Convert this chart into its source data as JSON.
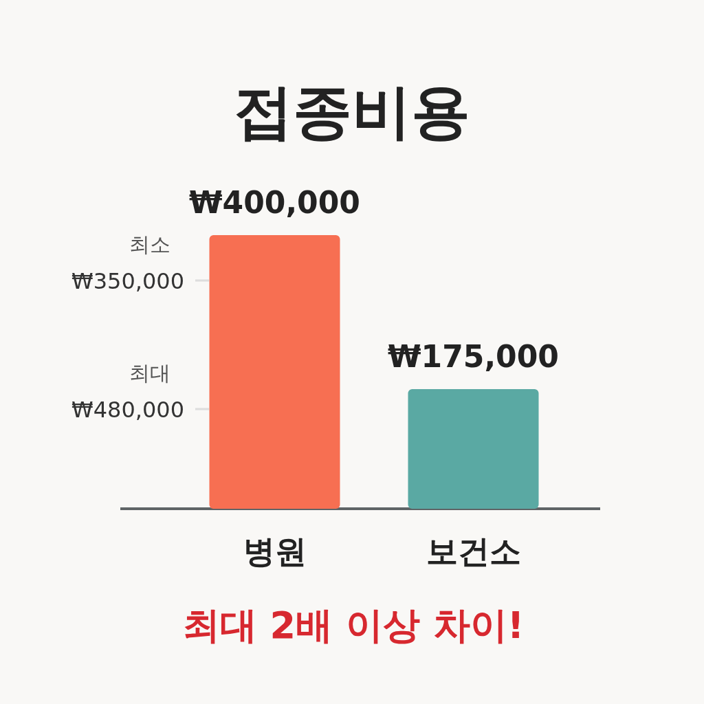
{
  "chart_data": {
    "type": "bar",
    "title": "접종비용",
    "categories": [
      "병원",
      "보건소"
    ],
    "values": [
      400000,
      175000
    ],
    "colors": [
      "#f76f52",
      "#5aa9a3"
    ],
    "value_labels": [
      "₩400,000",
      "₩175,000"
    ],
    "ylim": [
      0,
      400000
    ],
    "tick_labels": "x",
    "annotations": [
      "최소 ₩350,000",
      "최대 ₩480,000",
      "최대 2배 이상 차이!"
    ]
  }
}
